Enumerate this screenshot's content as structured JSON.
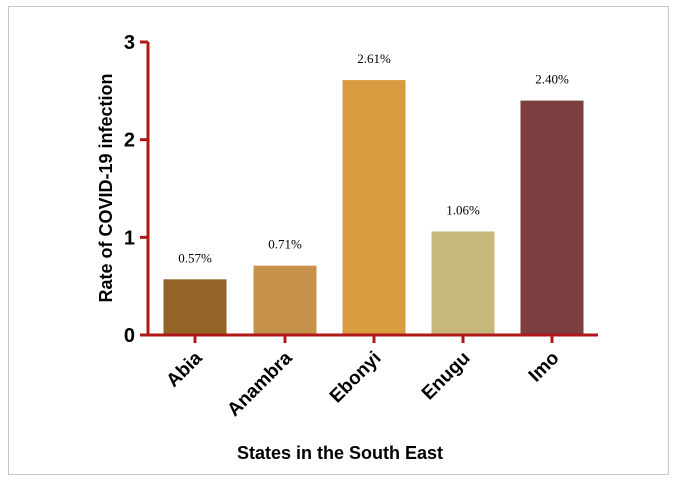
{
  "chart_data": {
    "type": "bar",
    "categories": [
      "Abia",
      "Anambra",
      "Ebonyi",
      "Enugu",
      "Imo"
    ],
    "values": [
      0.57,
      0.71,
      2.61,
      1.06,
      2.4
    ],
    "data_labels": [
      "0.57%",
      "0.71%",
      "2.61%",
      "1.06%",
      "2.40%"
    ],
    "colors": [
      "#946326",
      "#c6914b",
      "#d89b3f",
      "#c5b87a",
      "#7d3e3f"
    ],
    "axis_color": "#b01818",
    "xlabel": "States in the South East",
    "ylabel": "Rate of COVID-19 infection",
    "ylim": [
      0,
      3
    ],
    "yticks": [
      0,
      1,
      2,
      3
    ],
    "ytick_labels": [
      "0",
      "1",
      "2",
      "3"
    ],
    "grid": false,
    "legend": "none"
  }
}
